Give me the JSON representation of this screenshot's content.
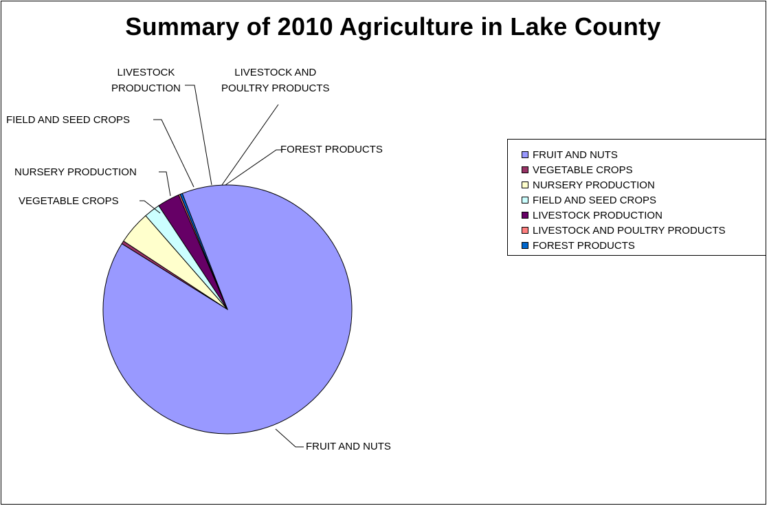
{
  "chart_data": {
    "type": "pie",
    "title": "Summary of 2010 Agriculture in Lake County",
    "legend_position": "right",
    "slices": [
      {
        "label": "FRUIT AND NUTS",
        "value": 89.5,
        "color": "#9999FF"
      },
      {
        "label": "VEGETABLE CROPS",
        "value": 0.4,
        "color": "#993366"
      },
      {
        "label": "NURSERY PRODUCTION",
        "value": 4.3,
        "color": "#FFFFCC"
      },
      {
        "label": "FIELD AND SEED CROPS",
        "value": 2.1,
        "color": "#CCFFFF"
      },
      {
        "label": "LIVESTOCK PRODUCTION",
        "value": 2.9,
        "color": "#660066"
      },
      {
        "label": "LIVESTOCK  AND POULTRY PRODUCTS",
        "value": 0.2,
        "color": "#FF8080"
      },
      {
        "label": "FOREST PRODUCTS",
        "value": 0.3,
        "color": "#0066CC"
      }
    ],
    "callouts": [
      "FRUIT AND NUTS",
      "VEGETABLE CROPS",
      "NURSERY PRODUCTION",
      "FIELD AND SEED CROPS",
      "LIVESTOCK\nPRODUCTION",
      "LIVESTOCK  AND\nPOULTRY PRODUCTS",
      "FOREST PRODUCTS"
    ]
  }
}
